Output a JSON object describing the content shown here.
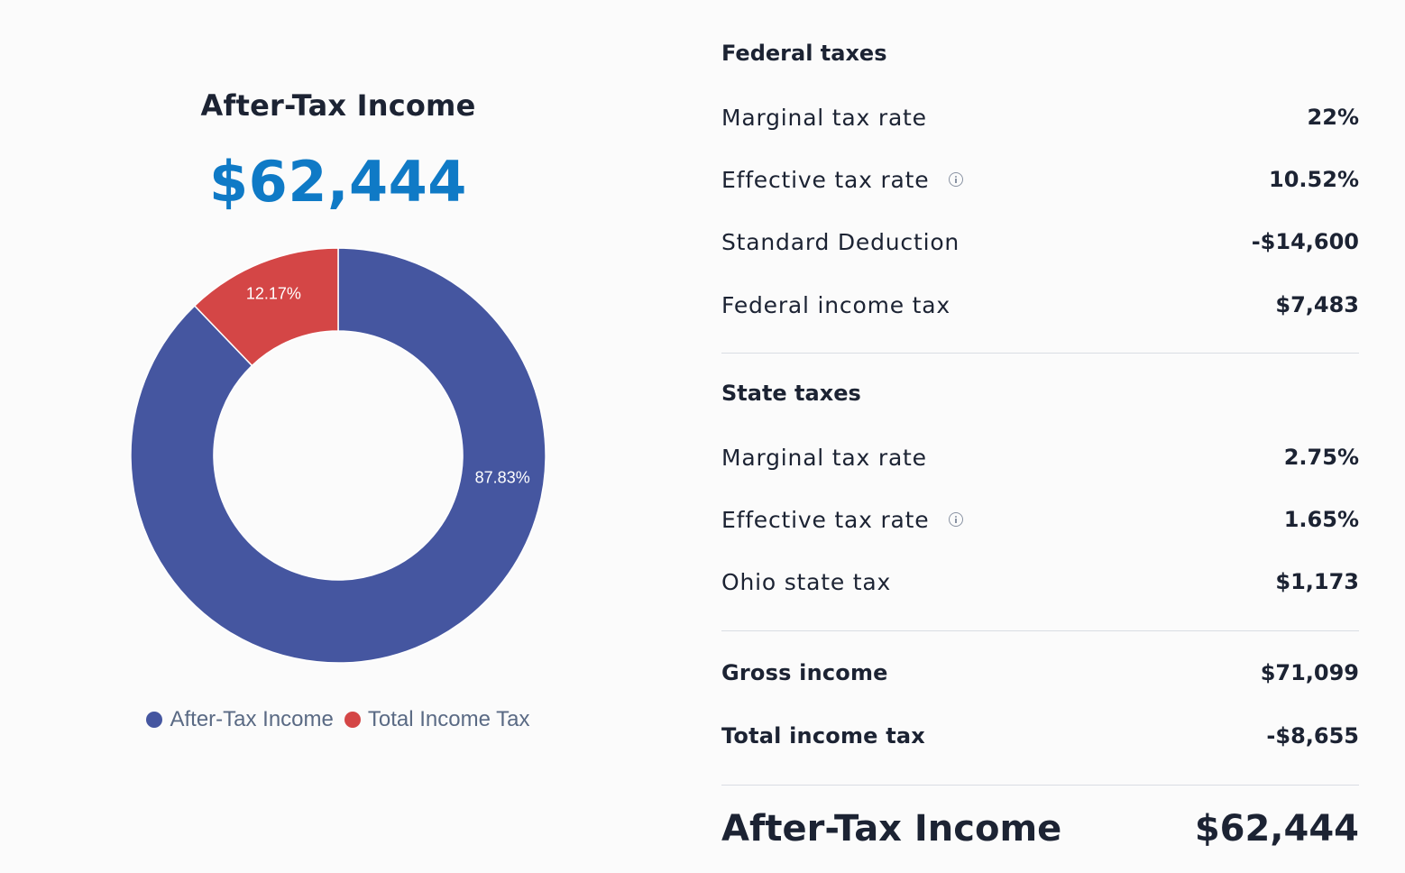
{
  "summary": {
    "title": "After-Tax Income",
    "amount": "$62,444"
  },
  "chart_data": {
    "type": "pie",
    "title": "",
    "categories": [
      "After-Tax Income",
      "Total Income Tax"
    ],
    "values": [
      87.83,
      12.17
    ],
    "labels": [
      "87.83%",
      "12.17%"
    ],
    "colors": [
      "#4556a0",
      "#d44646"
    ],
    "legend_position": "bottom",
    "hole": 0.6
  },
  "federal": {
    "heading": "Federal taxes",
    "rows": [
      {
        "label": "Marginal tax rate",
        "value": "22%"
      },
      {
        "label": "Effective tax rate",
        "value": "10.52%"
      },
      {
        "label": "Standard Deduction",
        "value": "-$14,600"
      },
      {
        "label": "Federal income tax",
        "value": "$7,483"
      }
    ]
  },
  "state": {
    "heading": "State taxes",
    "rows": [
      {
        "label": "Marginal tax rate",
        "value": "2.75%"
      },
      {
        "label": "Effective tax rate",
        "value": "1.65%"
      },
      {
        "label": "Ohio state tax",
        "value": "$1,173"
      }
    ]
  },
  "totals": {
    "gross_label": "Gross income",
    "gross_value": "$71,099",
    "tax_label": "Total income tax",
    "tax_value": "-$8,655",
    "net_label": "After-Tax Income",
    "net_value": "$62,444"
  },
  "icons": {
    "info": "info-circle-icon"
  }
}
